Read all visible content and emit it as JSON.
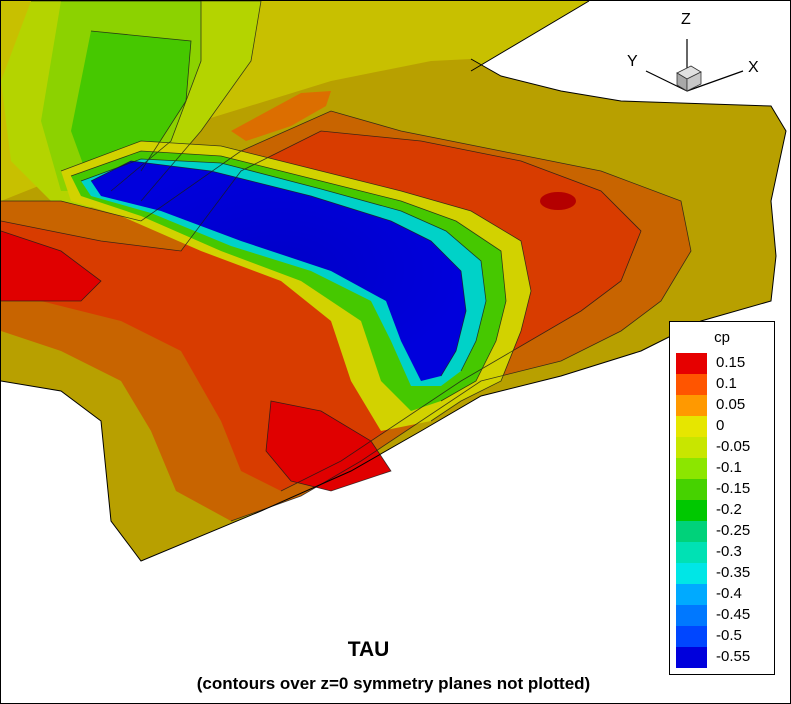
{
  "chart_data": {
    "type": "heatmap",
    "title": "TAU",
    "subtitle": "(contours over z=0 symmetry planes not plotted)",
    "variable": "cp",
    "legend": {
      "title": "cp",
      "placement": "bottom-right",
      "levels": [
        {
          "value": "0.15",
          "color": "#e60000"
        },
        {
          "value": "0.1",
          "color": "#ff5500"
        },
        {
          "value": "0.05",
          "color": "#ff9900"
        },
        {
          "value": "0",
          "color": "#e6e600"
        },
        {
          "value": "-0.05",
          "color": "#c8e600"
        },
        {
          "value": "-0.1",
          "color": "#8ce600"
        },
        {
          "value": "-0.15",
          "color": "#46d200"
        },
        {
          "value": "-0.2",
          "color": "#00c800"
        },
        {
          "value": "-0.25",
          "color": "#00d27a"
        },
        {
          "value": "-0.3",
          "color": "#00e1b4"
        },
        {
          "value": "-0.35",
          "color": "#00e6e6"
        },
        {
          "value": "-0.4",
          "color": "#00aaff"
        },
        {
          "value": "-0.45",
          "color": "#0078ff"
        },
        {
          "value": "-0.5",
          "color": "#0046ff"
        },
        {
          "value": "-0.55",
          "color": "#0000dc"
        }
      ]
    },
    "axes_triad": [
      "Z",
      "Y",
      "X"
    ],
    "range": [
      -0.55,
      0.15
    ]
  }
}
